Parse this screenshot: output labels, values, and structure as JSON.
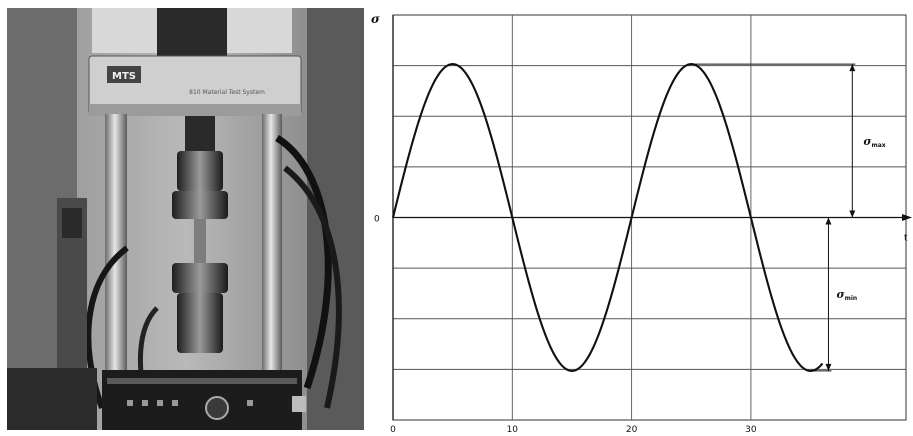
{
  "photo": {
    "subject": "fatigue testing machine",
    "machine_badge": "MTS",
    "machine_caption": "810 Material Test System"
  },
  "chart_data": {
    "type": "line",
    "series": [
      {
        "function": "sine",
        "amplitude": 1,
        "period": 20,
        "x_start": 0,
        "x_end": 36
      }
    ],
    "x_ticks": [
      0,
      10,
      20,
      30
    ],
    "y_ticks": [
      0
    ],
    "y_tick_label": "0",
    "xlim": [
      0,
      43
    ],
    "ylim": [
      -1.32,
      1.32
    ],
    "xlabel": "t",
    "ylabel": "σ",
    "grid": true,
    "horizontal_gridlines": 8,
    "annotations": [
      {
        "label": "σ",
        "subscript": "max",
        "x": 38.5,
        "y_from": 0,
        "y_to": 1
      },
      {
        "label": "σ",
        "subscript": "min",
        "x": 36.5,
        "y_from": 0,
        "y_to": -1
      }
    ]
  }
}
